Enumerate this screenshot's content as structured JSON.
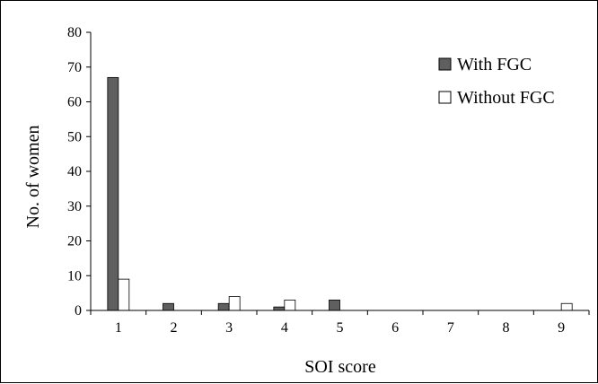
{
  "chart_data": {
    "type": "bar",
    "title": "",
    "xlabel": "SOI score",
    "ylabel": "No. of women",
    "categories": [
      "1",
      "2",
      "3",
      "4",
      "5",
      "6",
      "7",
      "8",
      "9"
    ],
    "ylim": [
      0,
      80
    ],
    "yticks": [
      0,
      10,
      20,
      30,
      40,
      50,
      60,
      70,
      80
    ],
    "grid": false,
    "legend_position": "top-right",
    "series": [
      {
        "name": "With FGC",
        "color": "#5f5f5f",
        "values": [
          67,
          2,
          2,
          1,
          3,
          0,
          0,
          0,
          0
        ]
      },
      {
        "name": "Without FGC",
        "color": "#ffffff",
        "values": [
          9,
          0,
          4,
          3,
          0,
          0,
          0,
          0,
          2
        ]
      }
    ]
  }
}
